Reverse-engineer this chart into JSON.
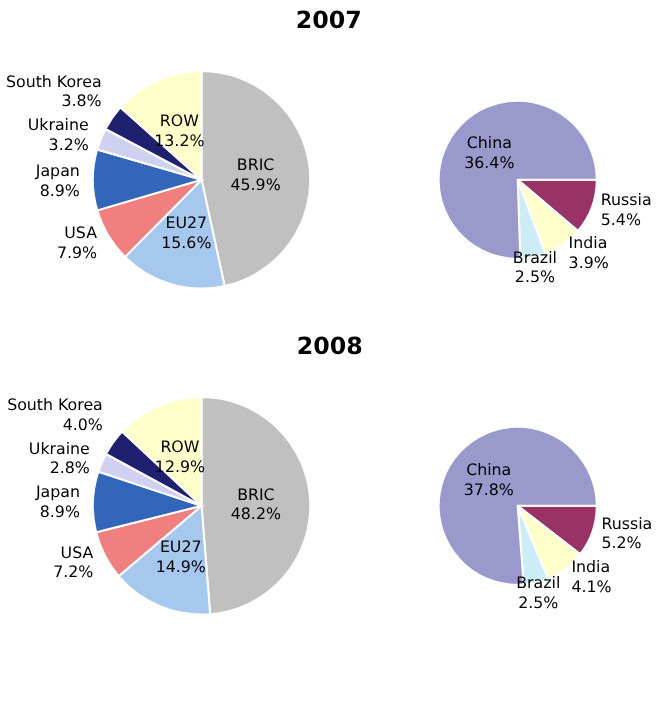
{
  "chart_data": [
    {
      "type": "pie",
      "title": "2007",
      "categories": [
        "BRIC",
        "EU27",
        "USA",
        "Japan",
        "Ukraine",
        "South Korea",
        "ROW"
      ],
      "values": [
        45.9,
        15.6,
        7.9,
        8.9,
        3.2,
        3.8,
        13.2
      ],
      "value_labels": [
        "45.9%",
        "15.6%",
        "7.9%",
        "8.9%",
        "3.2%",
        "3.8%",
        "13.2%"
      ],
      "colors": [
        "#c0c0c0",
        "#a6c8ee",
        "#f08080",
        "#3366bb",
        "#d0d0f0",
        "#202070",
        "#ffffcc"
      ],
      "legend": false
    },
    {
      "type": "pie",
      "categories": [
        "Russia",
        "India",
        "Brazil",
        "China"
      ],
      "values": [
        5.4,
        3.9,
        2.5,
        36.4
      ],
      "value_labels": [
        "5.4%",
        "3.9%",
        "2.5%",
        "36.4%"
      ],
      "colors": [
        "#993366",
        "#ffffcc",
        "#ccecf8",
        "#9999cc"
      ],
      "legend": false
    },
    {
      "type": "pie",
      "title": "2008",
      "categories": [
        "BRIC",
        "EU27",
        "USA",
        "Japan",
        "Ukraine",
        "South Korea",
        "ROW"
      ],
      "values": [
        48.2,
        14.9,
        7.2,
        8.9,
        2.8,
        4.0,
        12.9
      ],
      "value_labels": [
        "48.2%",
        "14.9%",
        "7.2%",
        "8.9%",
        "2.8%",
        "4.0%",
        "12.9%"
      ],
      "colors": [
        "#c0c0c0",
        "#a6c8ee",
        "#f08080",
        "#3366bb",
        "#d0d0f0",
        "#202070",
        "#ffffcc"
      ],
      "legend": false
    },
    {
      "type": "pie",
      "categories": [
        "Russia",
        "India",
        "Brazil",
        "China"
      ],
      "values": [
        5.2,
        4.1,
        2.5,
        37.8
      ],
      "value_labels": [
        "5.2%",
        "4.1%",
        "2.5%",
        "37.8%"
      ],
      "colors": [
        "#993366",
        "#ffffcc",
        "#ccecf8",
        "#9999cc"
      ],
      "legend": false
    }
  ]
}
